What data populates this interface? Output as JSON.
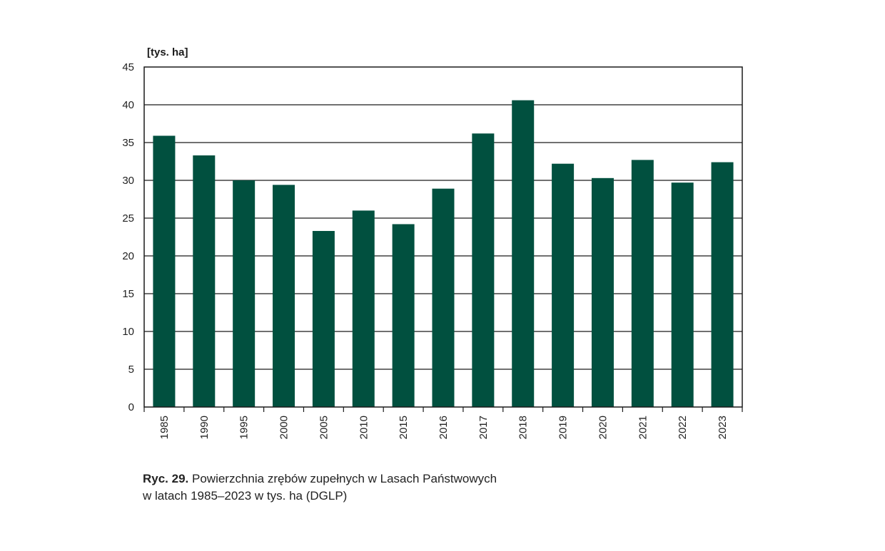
{
  "chart_data": {
    "type": "bar",
    "categories": [
      "1985",
      "1990",
      "1995",
      "2000",
      "2005",
      "2010",
      "2015",
      "2016",
      "2017",
      "2018",
      "2019",
      "2020",
      "2021",
      "2022",
      "2023"
    ],
    "values": [
      35.9,
      33.3,
      30.0,
      29.4,
      23.3,
      26.0,
      24.2,
      28.9,
      36.2,
      40.6,
      32.2,
      30.3,
      32.7,
      29.7,
      32.4
    ],
    "ylabel": "[tys. ha]",
    "xlabel": "",
    "ylim": [
      0,
      45
    ],
    "yticks": [
      0,
      5,
      10,
      15,
      20,
      25,
      30,
      35,
      40,
      45
    ],
    "grid": true,
    "bar_color": "#01503f"
  },
  "caption": {
    "label": "Ryc. 29.",
    "line1": "Powierzchnia zrębów zupełnych w Lasach Państwowych",
    "line2": "w latach 1985–2023 w tys. ha (DGLP)"
  }
}
